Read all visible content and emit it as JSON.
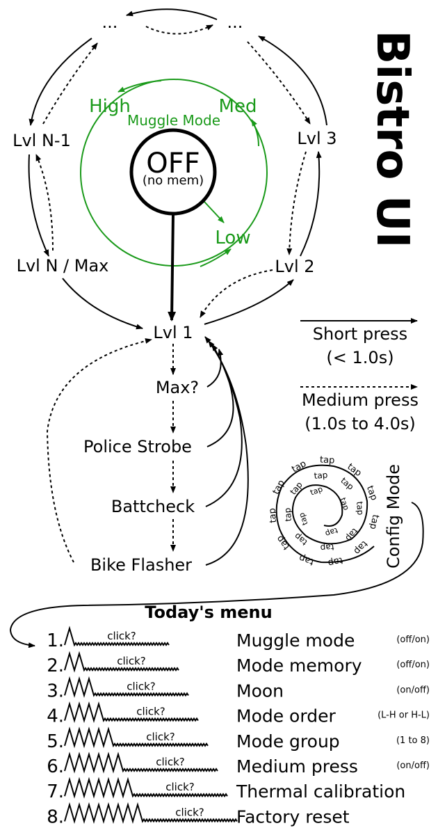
{
  "title": "Bistro UI",
  "nodes": {
    "off": "OFF",
    "off_sub": "(no mem)",
    "lvl1": "Lvl 1",
    "lvl2": "Lvl 2",
    "lvl3": "Lvl 3",
    "lvln1": "Lvl N-1",
    "lvlnmax": "Lvl N / Max",
    "ellipsis_left": "...",
    "ellipsis_right": "...",
    "max_q": "Max?",
    "police": "Police Strobe",
    "battcheck": "Battcheck",
    "bike": "Bike Flasher"
  },
  "muggle": {
    "title": "Muggle Mode",
    "high": "High",
    "med": "Med",
    "low": "Low"
  },
  "legend": {
    "short_line1": "Short press",
    "short_line2": "(< 1.0s)",
    "medium_line1": "Medium press",
    "medium_line2": "(1.0s to 4.0s)"
  },
  "config": {
    "label": "Config Mode",
    "tap": "tap"
  },
  "menu": {
    "heading": "Today's menu",
    "click": "click?",
    "items": [
      {
        "num": "1.",
        "label": "Muggle mode",
        "opt": "(off/on)",
        "peaks": 1
      },
      {
        "num": "2.",
        "label": "Mode memory",
        "opt": "(off/on)",
        "peaks": 2
      },
      {
        "num": "3.",
        "label": "Moon",
        "opt": "(on/off)",
        "peaks": 3
      },
      {
        "num": "4.",
        "label": "Mode order",
        "opt": "(L-H or H-L)",
        "peaks": 4
      },
      {
        "num": "5.",
        "label": "Mode group",
        "opt": "(1 to 8)",
        "peaks": 5
      },
      {
        "num": "6.",
        "label": "Medium press",
        "opt": "(on/off)",
        "peaks": 6
      },
      {
        "num": "7.",
        "label": "Thermal calibration",
        "opt": "",
        "peaks": 7
      },
      {
        "num": "8.",
        "label": "Factory reset",
        "opt": "",
        "peaks": 8
      }
    ]
  }
}
